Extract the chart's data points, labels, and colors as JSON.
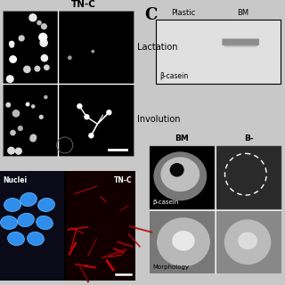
{
  "bg_color": "#c8c8c8",
  "title_text": "TN-C",
  "label_lactation": "Lactation",
  "label_involution": "Involution",
  "label_nuclei": "Nuclei",
  "label_tnc": "TN-C",
  "label_C": "C",
  "label_plastic": "Plastic",
  "label_BM": "BM",
  "label_bcasein": "β-casein",
  "label_bcasein2": "β-casein",
  "label_morphology": "Morphology",
  "label_BM2": "BM",
  "label_BM3": "B-"
}
